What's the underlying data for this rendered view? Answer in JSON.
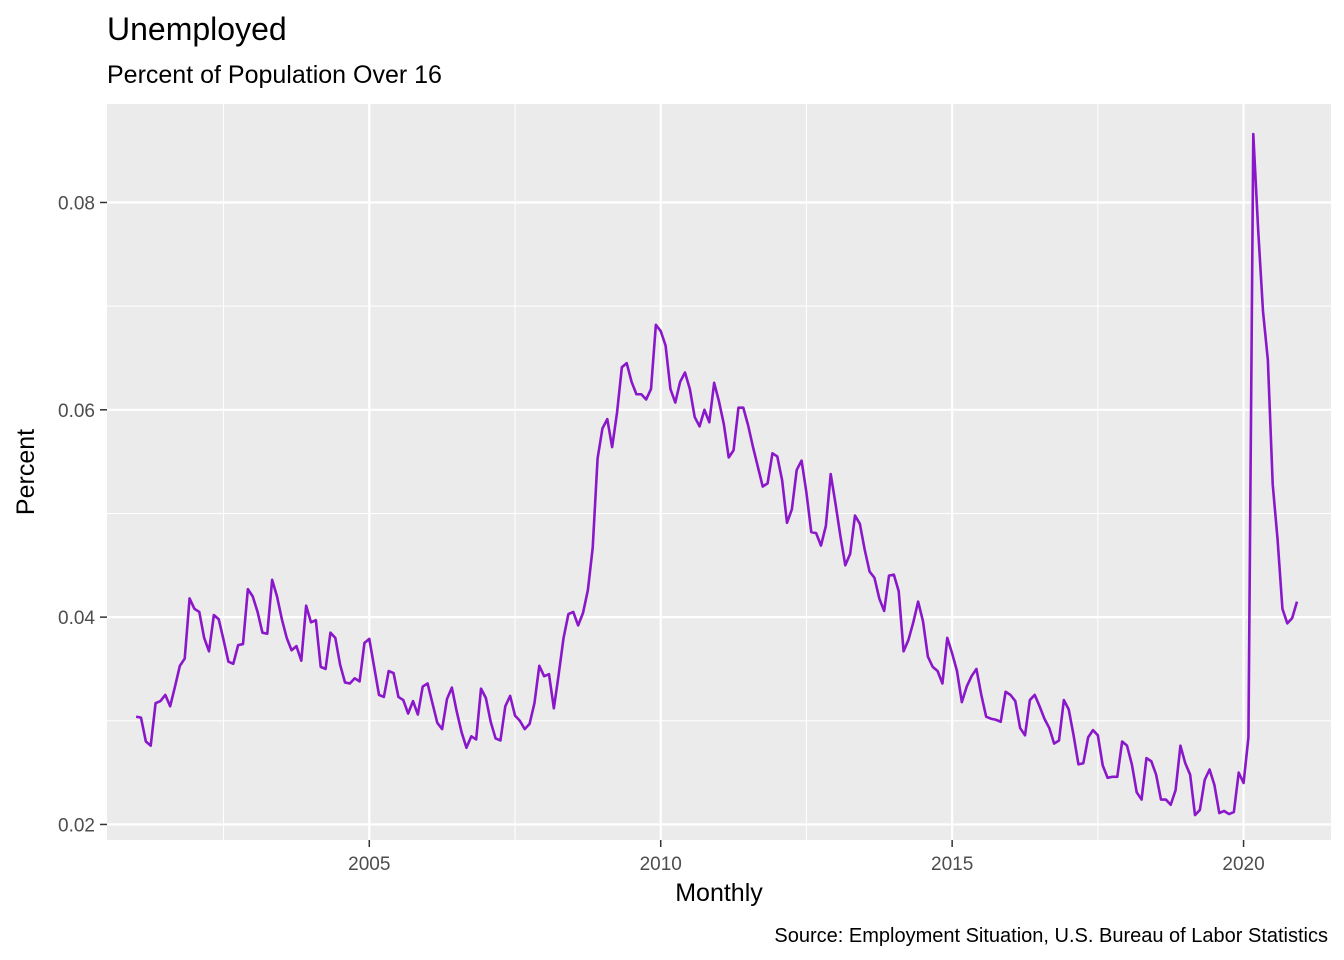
{
  "chart_data": {
    "type": "line",
    "title": "Unemployed",
    "subtitle": "Percent of Population Over 16",
    "xlabel": "Monthly",
    "ylabel": "Percent",
    "caption": "Source: Employment Situation, U.S. Bureau of Labor Statistics",
    "xlim": [
      "2000-07-01",
      "2021-07-01"
    ],
    "ylim": [
      0.0185,
      0.0895
    ],
    "x_ticks": [
      "2005",
      "2010",
      "2015",
      "2020"
    ],
    "y_ticks": [
      "0.02",
      "0.04",
      "0.06",
      "0.08"
    ],
    "x_tick_values": [
      "2005-01-01",
      "2010-01-01",
      "2015-01-01",
      "2020-01-01"
    ],
    "y_tick_values": [
      0.02,
      0.04,
      0.06,
      0.08
    ],
    "grid": true,
    "line_color": "#8a17c9",
    "panel_color": "#ebebeb",
    "series": [
      {
        "x_start": "2001-01",
        "frequency": "monthly",
        "values": [
          0.0304,
          0.0303,
          0.028,
          0.0276,
          0.0317,
          0.0319,
          0.0325,
          0.0314,
          0.0333,
          0.0353,
          0.036,
          0.0418,
          0.0408,
          0.0405,
          0.038,
          0.0367,
          0.0402,
          0.0398,
          0.0378,
          0.0357,
          0.0355,
          0.0373,
          0.0374,
          0.0427,
          0.042,
          0.0405,
          0.0385,
          0.0384,
          0.0436,
          0.042,
          0.0398,
          0.038,
          0.0368,
          0.0372,
          0.0358,
          0.0411,
          0.0395,
          0.0397,
          0.0352,
          0.035,
          0.0385,
          0.038,
          0.0354,
          0.0337,
          0.0336,
          0.0341,
          0.0338,
          0.0375,
          0.0379,
          0.0352,
          0.0325,
          0.0323,
          0.0348,
          0.0346,
          0.0323,
          0.032,
          0.0307,
          0.0319,
          0.0306,
          0.0333,
          0.0336,
          0.0317,
          0.0298,
          0.0292,
          0.0321,
          0.0332,
          0.0309,
          0.0289,
          0.0274,
          0.0285,
          0.0282,
          0.0331,
          0.0322,
          0.0299,
          0.0283,
          0.0281,
          0.0314,
          0.0324,
          0.0305,
          0.03,
          0.0292,
          0.0297,
          0.0317,
          0.0353,
          0.0343,
          0.0345,
          0.0312,
          0.0345,
          0.038,
          0.0403,
          0.0405,
          0.0392,
          0.0404,
          0.0426,
          0.0467,
          0.0553,
          0.0582,
          0.0591,
          0.0564,
          0.0597,
          0.0641,
          0.0645,
          0.0627,
          0.0615,
          0.0615,
          0.061,
          0.062,
          0.0682,
          0.0676,
          0.0662,
          0.062,
          0.0607,
          0.0627,
          0.0636,
          0.062,
          0.0593,
          0.0584,
          0.06,
          0.0588,
          0.0626,
          0.0608,
          0.0586,
          0.0554,
          0.0561,
          0.0602,
          0.0602,
          0.0585,
          0.0564,
          0.0545,
          0.0526,
          0.0529,
          0.0558,
          0.0555,
          0.0532,
          0.0491,
          0.0504,
          0.0542,
          0.0551,
          0.052,
          0.0482,
          0.0481,
          0.0469,
          0.0488,
          0.0538,
          0.0509,
          0.0478,
          0.045,
          0.0461,
          0.0498,
          0.049,
          0.0465,
          0.0444,
          0.0438,
          0.0418,
          0.0406,
          0.044,
          0.0441,
          0.0425,
          0.0367,
          0.0378,
          0.0395,
          0.0415,
          0.0396,
          0.0362,
          0.0352,
          0.0348,
          0.0336,
          0.038,
          0.0365,
          0.0348,
          0.0318,
          0.0333,
          0.0343,
          0.035,
          0.0325,
          0.0304,
          0.0302,
          0.0301,
          0.0299,
          0.0328,
          0.0325,
          0.0319,
          0.0293,
          0.0286,
          0.032,
          0.0325,
          0.0314,
          0.0302,
          0.0293,
          0.0278,
          0.0281,
          0.032,
          0.0311,
          0.0286,
          0.0258,
          0.0259,
          0.0284,
          0.0291,
          0.0286,
          0.0257,
          0.0245,
          0.0246,
          0.0246,
          0.028,
          0.0276,
          0.0258,
          0.0231,
          0.0224,
          0.0264,
          0.0261,
          0.0248,
          0.0224,
          0.0224,
          0.0219,
          0.0233,
          0.0276,
          0.0259,
          0.0248,
          0.0209,
          0.0214,
          0.0243,
          0.0253,
          0.0238,
          0.0211,
          0.0213,
          0.021,
          0.0212,
          0.025,
          0.024,
          0.0284,
          0.0866,
          0.0774,
          0.0695,
          0.0648,
          0.0528,
          0.0475,
          0.0408,
          0.0394,
          0.0399,
          0.0415
        ]
      }
    ]
  }
}
